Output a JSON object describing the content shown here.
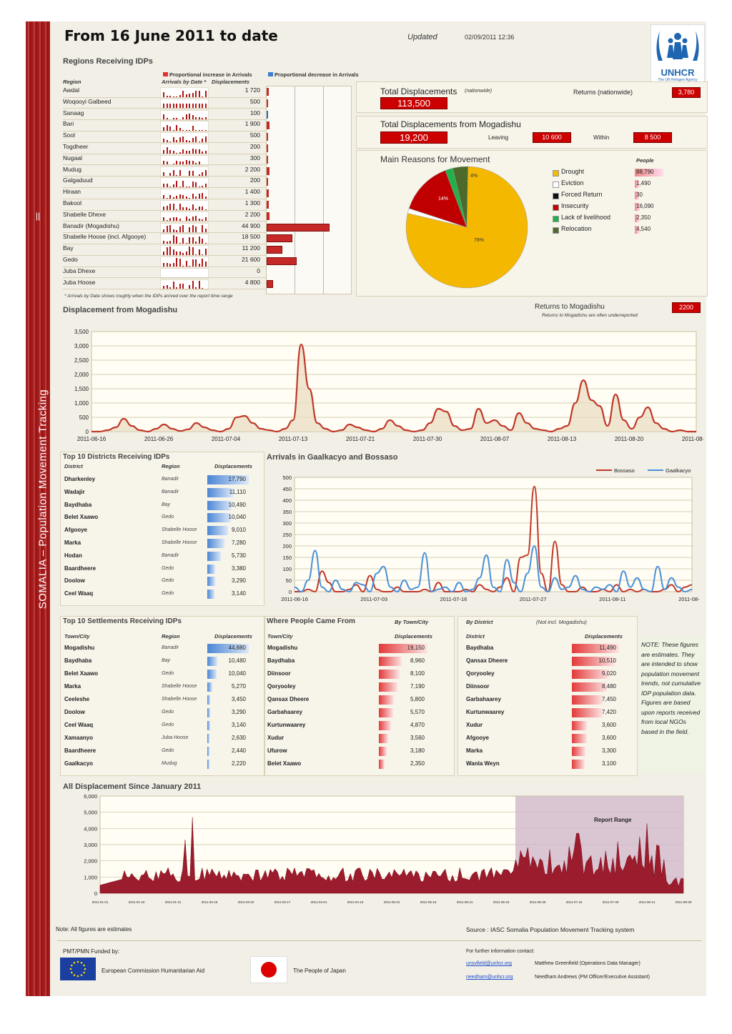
{
  "header": {
    "title": "From 16 June 2011 to date",
    "updated_label": "Updated",
    "updated_value": "02/09/2011 12:36",
    "logo_name": "UNHCR",
    "logo_sub": "The UN Refugee Agency"
  },
  "side_banner": {
    "text": "SOMALIA – Population Movement Tracking",
    "mark": "||"
  },
  "regions": {
    "title": "Regions Receiving IDPs",
    "legend_increase": "Proportional increase in Arrivals",
    "legend_decrease": "Proportional decrease in Arrivals",
    "col_region": "Region",
    "col_arrivals": "Arrivals by Date *",
    "col_displacements": "Displacements",
    "footnote": "* Arrivals by Date shows roughly when the IDPs arrived over the report time range",
    "rows": [
      {
        "region": "Awdal",
        "value": "1 720",
        "n": 1720,
        "change": "up"
      },
      {
        "region": "Woqooyi Galbeed",
        "value": "500",
        "n": 500,
        "change": "none"
      },
      {
        "region": "Sanaag",
        "value": "100",
        "n": 100,
        "change": "down"
      },
      {
        "region": "Bari",
        "value": "1 900",
        "n": 1900,
        "change": "up"
      },
      {
        "region": "Sool",
        "value": "500",
        "n": 500,
        "change": "up"
      },
      {
        "region": "Togdheer",
        "value": "200",
        "n": 200,
        "change": "none"
      },
      {
        "region": "Nugaal",
        "value": "300",
        "n": 300,
        "change": "up"
      },
      {
        "region": "Mudug",
        "value": "2 200",
        "n": 2200,
        "change": "up"
      },
      {
        "region": "Galgaduud",
        "value": "200",
        "n": 200,
        "change": "none"
      },
      {
        "region": "Hiraan",
        "value": "1 400",
        "n": 1400,
        "change": "none"
      },
      {
        "region": "Bakool",
        "value": "1 300",
        "n": 1300,
        "change": "none"
      },
      {
        "region": "Shabelle Dhexe",
        "value": "2 200",
        "n": 2200,
        "change": "up"
      },
      {
        "region": "Banadir (Mogadishu)",
        "value": "44 900",
        "n": 44900,
        "change": "up"
      },
      {
        "region": "Shabelle Hoose (incl. Afgooye)",
        "value": "18 500",
        "n": 18500,
        "change": "up"
      },
      {
        "region": "Bay",
        "value": "11 200",
        "n": 11200,
        "change": "up"
      },
      {
        "region": "Gedo",
        "value": "21 600",
        "n": 21600,
        "change": "up"
      },
      {
        "region": "Juba Dhexe",
        "value": "0",
        "n": 0,
        "change": "none"
      },
      {
        "region": "Juba Hoose",
        "value": "4 800",
        "n": 4800,
        "change": "up"
      }
    ]
  },
  "totals": {
    "total_label": "Total Displacements",
    "total_scope": "(nationwide)",
    "total_value": "113,500",
    "returns_label": "Returns (nationwide)",
    "returns_value": "3,780",
    "mog_label": "Total Displacements from Mogadishu",
    "mog_value": "19,200",
    "leaving_label": "Leaving",
    "leaving_value": "10 600",
    "within_label": "Within",
    "within_value": "8 500"
  },
  "reasons": {
    "title": "Main Reasons for Movement",
    "people_label": "People",
    "items": [
      {
        "label": "Drought",
        "value": "88,790",
        "n": 88790,
        "color": "#f5b800"
      },
      {
        "label": "Eviction",
        "value": "1,490",
        "n": 1490,
        "color": "#ffffff"
      },
      {
        "label": "Forced Return",
        "value": "30",
        "n": 30,
        "color": "#111111"
      },
      {
        "label": "Insecurity",
        "value": "16,090",
        "n": 16090,
        "color": "#c00000"
      },
      {
        "label": "Lack of livelihood",
        "value": "2,350",
        "n": 2350,
        "color": "#22b04b"
      },
      {
        "label": "Relocation",
        "value": "4,540",
        "n": 4540,
        "color": "#4d6a2b"
      }
    ],
    "slice_labels": [
      "78%",
      "14%",
      "4%"
    ]
  },
  "returns_mog": {
    "label": "Returns to Mogadishu",
    "note": "Returns to Mogadishu are often underreported",
    "value": "2200"
  },
  "displacement_mog": {
    "title": "Displacement from Mogadishu",
    "chart_data": {
      "type": "area",
      "yticks": [
        "3,500",
        "3,000",
        "2,500",
        "2,000",
        "1,500",
        "1,000",
        "500",
        "0"
      ],
      "ylim": [
        0,
        3500
      ],
      "xticks": [
        "2011-06-16",
        "2011-06-26",
        "2011-07-04",
        "2011-07-13",
        "2011-07-21",
        "2011-07-30",
        "2011-08-07",
        "2011-08-13",
        "2011-08-20",
        "2011-08-28"
      ],
      "values": [
        0,
        0,
        50,
        150,
        450,
        200,
        50,
        0,
        100,
        250,
        100,
        20,
        80,
        300,
        150,
        50,
        0,
        100,
        500,
        550,
        300,
        100,
        50,
        0,
        100,
        400,
        3050,
        1500,
        300,
        100,
        0,
        50,
        250,
        150,
        50,
        0,
        100,
        400,
        200,
        50,
        0,
        50,
        300,
        800,
        700,
        200,
        50,
        100,
        800,
        300,
        400,
        200,
        50,
        650,
        300,
        100,
        50,
        0,
        100,
        200,
        1000,
        1800,
        1100,
        900,
        200,
        1300,
        400,
        100,
        500,
        850,
        300,
        100,
        0,
        50,
        0,
        0
      ]
    }
  },
  "top_districts": {
    "title": "Top 10 Districts Receiving IDPs",
    "col1": "District",
    "col2": "Region",
    "col3": "Displacements",
    "rows": [
      {
        "name": "Dharkenley",
        "region": "Banadir",
        "value": "17,790",
        "n": 17790
      },
      {
        "name": "Wadajir",
        "region": "Banadir",
        "value": "11,110",
        "n": 11110
      },
      {
        "name": "Baydhaba",
        "region": "Bay",
        "value": "10,490",
        "n": 10490
      },
      {
        "name": "Belet Xaawo",
        "region": "Gedo",
        "value": "10,040",
        "n": 10040
      },
      {
        "name": "Afgooye",
        "region": "Shabelle Hoose",
        "value": "9,010",
        "n": 9010
      },
      {
        "name": "Marka",
        "region": "Shabelle Hoose",
        "value": "7,280",
        "n": 7280
      },
      {
        "name": "Hodan",
        "region": "Banadir",
        "value": "5,730",
        "n": 5730
      },
      {
        "name": "Baardheere",
        "region": "Gedo",
        "value": "3,380",
        "n": 3380
      },
      {
        "name": "Doolow",
        "region": "Gedo",
        "value": "3,290",
        "n": 3290
      },
      {
        "name": "Ceel Waaq",
        "region": "Gedo",
        "value": "3,140",
        "n": 3140
      }
    ]
  },
  "arrivals": {
    "title": "Arrivals in Gaalkacyo and Bossaso",
    "chart_data": {
      "type": "line",
      "ylim": [
        0,
        500
      ],
      "yticks": [
        "500",
        "450",
        "400",
        "350",
        "300",
        "250",
        "200",
        "150",
        "100",
        "50",
        "0"
      ],
      "xticks": [
        "2011-06-16",
        "2011-07-03",
        "2011-07-16",
        "2011-07-27",
        "2011-08-11",
        "2011-08-25"
      ],
      "series": [
        {
          "name": "Bossaso",
          "color": "#c0392b",
          "values": [
            0,
            0,
            10,
            0,
            90,
            40,
            0,
            0,
            10,
            30,
            0,
            70,
            10,
            0,
            0,
            20,
            0,
            0,
            0,
            10,
            0,
            40,
            0,
            0,
            0,
            10,
            0,
            30,
            10,
            0,
            20,
            60,
            0,
            150,
            160,
            460,
            80,
            0,
            220,
            30,
            0,
            0,
            20,
            0,
            0,
            10,
            0,
            30,
            0,
            10,
            0,
            10,
            0,
            0,
            10,
            30,
            0,
            20,
            30
          ]
        },
        {
          "name": "Gaalkacyo",
          "color": "#4a90d9",
          "values": [
            20,
            0,
            50,
            180,
            20,
            0,
            50,
            10,
            0,
            40,
            30,
            0,
            80,
            110,
            20,
            0,
            50,
            10,
            20,
            170,
            0,
            10,
            20,
            0,
            40,
            0,
            10,
            60,
            160,
            20,
            0,
            140,
            40,
            0,
            80,
            200,
            20,
            0,
            60,
            10,
            20,
            70,
            10,
            0,
            20,
            10,
            30,
            0,
            90,
            20,
            60,
            10,
            0,
            110,
            10,
            60,
            20,
            0,
            10
          ]
        }
      ]
    }
  },
  "top_settlements": {
    "title": "Top 10 Settlements Receiving IDPs",
    "col1": "Town/City",
    "col2": "Region",
    "col3": "Displacements",
    "rows": [
      {
        "name": "Mogadishu",
        "region": "Banadir",
        "value": "44,880",
        "n": 44880
      },
      {
        "name": "Baydhaba",
        "region": "Bay",
        "value": "10,480",
        "n": 10480
      },
      {
        "name": "Belet Xaawo",
        "region": "Gedo",
        "value": "10,040",
        "n": 10040
      },
      {
        "name": "Marka",
        "region": "Shabelle Hoose",
        "value": "5,270",
        "n": 5270
      },
      {
        "name": "Ceeleshe",
        "region": "Shabelle Hoose",
        "value": "3,450",
        "n": 3450
      },
      {
        "name": "Doolow",
        "region": "Gedo",
        "value": "3,290",
        "n": 3290
      },
      {
        "name": "Ceel Waaq",
        "region": "Gedo",
        "value": "3,140",
        "n": 3140
      },
      {
        "name": "Xamaanyo",
        "region": "Juba Hoose",
        "value": "2,630",
        "n": 2630
      },
      {
        "name": "Baardheere",
        "region": "Gedo",
        "value": "2,440",
        "n": 2440
      },
      {
        "name": "Gaalkacyo",
        "region": "Mudug",
        "value": "2,220",
        "n": 2220
      }
    ]
  },
  "came_from": {
    "title": "Where People Came From",
    "subtitle": "By Town/City",
    "col1": "Town/City",
    "col2": "Displacements",
    "rows": [
      {
        "name": "Mogadishu",
        "value": "19,150",
        "n": 19150
      },
      {
        "name": "Baydhaba",
        "value": "8,960",
        "n": 8960
      },
      {
        "name": "Diinsoor",
        "value": "8,100",
        "n": 8100
      },
      {
        "name": "Qoryooley",
        "value": "7,190",
        "n": 7190
      },
      {
        "name": "Qansax Dheere",
        "value": "5,800",
        "n": 5800
      },
      {
        "name": "Garbahaarey",
        "value": "5,570",
        "n": 5570
      },
      {
        "name": "Kurtunwaarey",
        "value": "4,870",
        "n": 4870
      },
      {
        "name": "Xudur",
        "value": "3,560",
        "n": 3560
      },
      {
        "name": "Ufurow",
        "value": "3,180",
        "n": 3180
      },
      {
        "name": "Belet Xaawo",
        "value": "2,350",
        "n": 2350
      }
    ]
  },
  "by_district": {
    "title": "By District",
    "note": "(Not incl. Mogadishu)",
    "col1": "District",
    "col2": "Displacements",
    "rows": [
      {
        "name": "Baydhaba",
        "value": "11,490",
        "n": 11490
      },
      {
        "name": "Qansax Dheere",
        "value": "10,510",
        "n": 10510
      },
      {
        "name": "Qoryooley",
        "value": "9,020",
        "n": 9020
      },
      {
        "name": "Diinsoor",
        "value": "8,480",
        "n": 8480
      },
      {
        "name": "Garbahaarey",
        "value": "7,450",
        "n": 7450
      },
      {
        "name": "Kurtunwaarey",
        "value": "7,420",
        "n": 7420
      },
      {
        "name": "Xudur",
        "value": "3,600",
        "n": 3600
      },
      {
        "name": "Afgooye",
        "value": "3,600",
        "n": 3600
      },
      {
        "name": "Marka",
        "value": "3,300",
        "n": 3300
      },
      {
        "name": "Wanla Weyn",
        "value": "3,100",
        "n": 3100
      }
    ]
  },
  "note_box": "NOTE: These figures are estimates. They are intended to show population movement trends, not cumulative IDP population data. Figures are based upon reports received from local NGOs based in the field.",
  "all_displacement": {
    "title": "All Displacement Since January 2011",
    "range_label": "Report Range",
    "chart_data": {
      "type": "area",
      "ylim": [
        0,
        6000
      ],
      "yticks": [
        "6,000",
        "5,000",
        "4,000",
        "3,000",
        "2,000",
        "1,000",
        "0"
      ],
      "xticks": [
        "2011-01-01",
        "2011-01-16",
        "2011-01-31",
        "2011-02-15",
        "2011-03-02",
        "2011-03-17",
        "2011-04-01",
        "2011-04-16",
        "2011-05-01",
        "2011-05-16",
        "2011-05-31",
        "2011-06-15",
        "2011-06-30",
        "2011-07-15",
        "2011-07-30",
        "2011-08-14",
        "2011-08-29"
      ],
      "report_range_start": "2011-06-16"
    }
  },
  "footer": {
    "note": "Note: All figures are estimates",
    "source": "Source : IASC Somalia Population Movement Tracking system",
    "funded_by": "PMT/PMN Funded by:",
    "funder1": "European Commission Humanitarian Aid",
    "funder2": "The People of Japan",
    "contact_title": "For further information contact:",
    "email1": "unsvfield@unhcr.org",
    "name1": "Matthew Greenfield (Operations Data Manager)",
    "email2": "needham@unhcr.org",
    "name2": "Needham Andrews (PM Officer/Executive Assistant)"
  }
}
